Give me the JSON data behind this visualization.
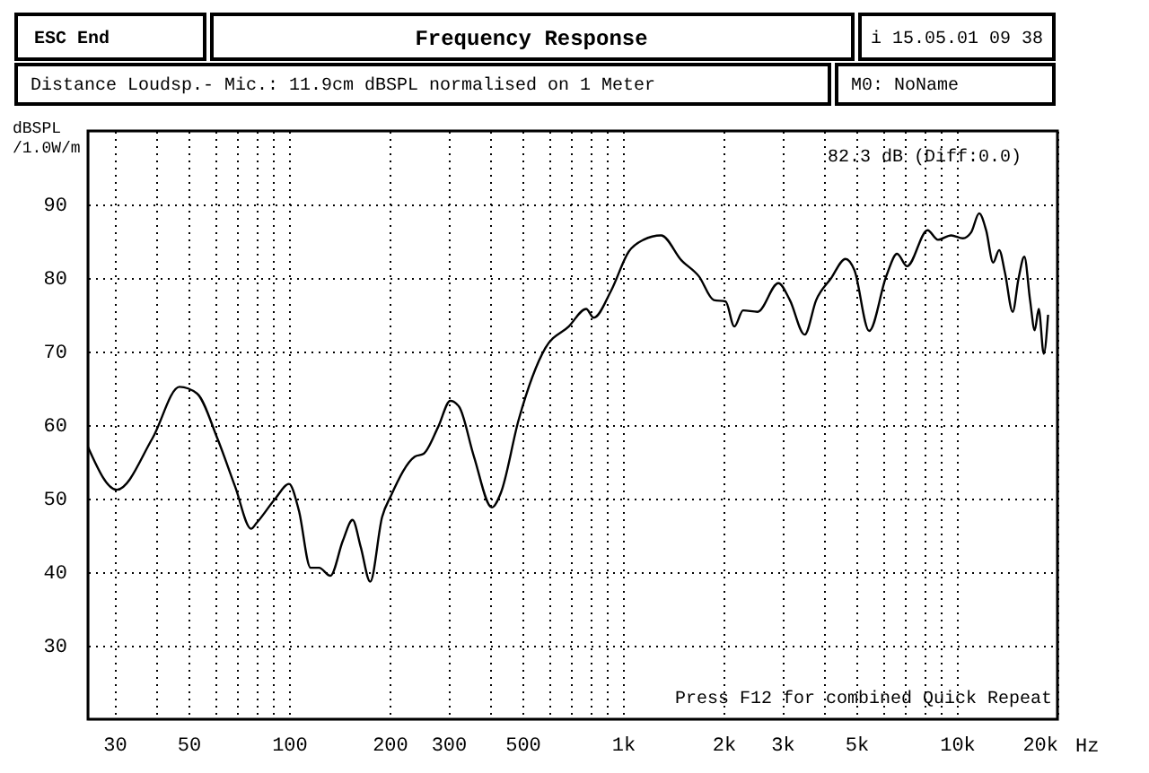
{
  "chart_data": {
    "type": "line",
    "title": "Frequency Response",
    "ylabel": "dBSPL /1.0W/m",
    "annotations": [
      "ESC End",
      "i 15.05.01 09 38",
      "Distance Loudsp.- Mic.: 11.9cm dBSPL normalised on 1 Meter",
      "M0: NoName",
      "82.3 dB (Diff:0.0)",
      "Press F12 for combined Quick Repeat"
    ],
    "x": [
      25,
      30.5,
      39,
      47,
      53,
      61,
      69,
      77,
      80,
      91,
      100,
      107,
      116,
      123,
      133,
      145,
      155,
      164,
      175,
      190,
      202,
      238,
      253,
      280,
      304,
      323,
      358,
      405,
      431,
      487,
      586,
      688,
      776,
      817,
      922,
      1041,
      1152,
      1300,
      1497,
      1690,
      1870,
      2030,
      2155,
      2290,
      2530,
      2920,
      3160,
      3500,
      3790,
      4190,
      4640,
      4930,
      5460,
      6150,
      6620,
      7090,
      8170,
      8770,
      9610,
      10420,
      11030,
      11660,
      12230,
      12840,
      13380,
      13930,
      14690,
      15290,
      15920,
      16560,
      17100,
      17580,
      18200,
      18750
    ],
    "series": [
      {
        "color": "#000000",
        "values": [
          57.0,
          51.2,
          58.2,
          65.2,
          64.3,
          58.2,
          51.6,
          45.9,
          46.7,
          50.0,
          52.0,
          48.4,
          40.6,
          40.6,
          39.5,
          44.3,
          47.1,
          43.4,
          38.7,
          47.5,
          50.4,
          55.7,
          56.1,
          59.8,
          63.3,
          62.5,
          55.7,
          48.8,
          50.8,
          60.7,
          70.5,
          73.4,
          75.8,
          74.6,
          78.3,
          83.6,
          85.2,
          85.8,
          82.4,
          80.2,
          77.0,
          76.8,
          73.4,
          75.6,
          75.4,
          79.3,
          77.0,
          72.3,
          77.0,
          79.9,
          82.6,
          81.1,
          72.8,
          80.3,
          83.3,
          81.6,
          86.5,
          85.2,
          85.8,
          85.4,
          86.2,
          88.8,
          86.5,
          82.1,
          83.8,
          80.7,
          75.4,
          79.9,
          82.9,
          77.0,
          72.9,
          75.8,
          69.7,
          75.0
        ]
      }
    ],
    "log": "x",
    "xlim": [
      25,
      20000
    ],
    "ylim": [
      20,
      100
    ],
    "xticks": [
      30,
      {
        "value": 40,
        "label": null
      },
      50,
      {
        "value": 60,
        "label": null
      },
      {
        "value": 70,
        "label": null
      },
      {
        "value": 80,
        "label": null
      },
      {
        "value": 90,
        "label": null
      },
      100,
      200,
      300,
      {
        "value": 400,
        "label": null
      },
      500,
      {
        "value": 600,
        "label": null
      },
      {
        "value": 700,
        "label": null
      },
      {
        "value": 800,
        "label": null
      },
      {
        "value": 900,
        "label": null
      },
      {
        "value": 1000,
        "label": "1k"
      },
      {
        "value": 2000,
        "label": "2k"
      },
      {
        "value": 3000,
        "label": "3k"
      },
      {
        "value": 4000,
        "label": null
      },
      {
        "value": 5000,
        "label": "5k"
      },
      {
        "value": 6000,
        "label": null
      },
      {
        "value": 7000,
        "label": null
      },
      {
        "value": 8000,
        "label": null
      },
      {
        "value": 9000,
        "label": null
      },
      {
        "value": 10000,
        "label": "10k"
      },
      {
        "value": 20000,
        "label": "20k"
      }
    ],
    "xlabel": "Hz",
    "yticks": [
      30,
      40,
      50,
      60,
      70,
      80,
      90
    ],
    "grid": true,
    "marker": "none",
    "line_style": "solid"
  }
}
